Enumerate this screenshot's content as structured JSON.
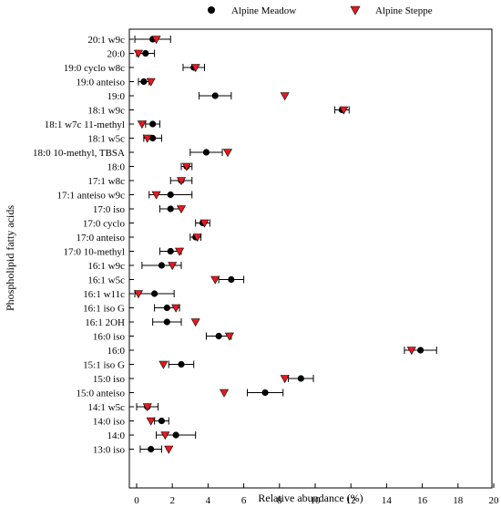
{
  "chart_data": {
    "type": "scatter",
    "orientation": "horizontal",
    "title": "",
    "xlabel": "Relative abundance (%)",
    "ylabel": "Phospholipid fatty acids",
    "xlim": [
      0,
      20
    ],
    "xticks": [
      "0",
      "2",
      "4",
      "6",
      "8",
      "10",
      "12",
      "14",
      "16",
      "18",
      "20"
    ],
    "grid": false,
    "legend_position": "top",
    "categories": [
      "20:1 w9c",
      "20:0",
      "19:0 cyclo w8c",
      "19:0 anteiso",
      "19:0",
      "18:1 w9c",
      "18:1 w7c 11-methyl",
      "18:1 w5c",
      "18:0 10-methyl, TBSA",
      "18:0",
      "17:1 w8c",
      "17:1 anteiso w9c",
      "17:0 iso",
      "17:0 cyclo",
      "17:0 anteiso",
      "17:0 10-methyl",
      "16:1 w9c",
      "16:1 w5c",
      "16:1 w11c",
      "16:1 iso G",
      "16:1 2OH",
      "16:0 iso",
      "16:0",
      "15:1 iso G",
      "15:0 iso",
      "15:0 anteiso",
      "14:1 w5c",
      "14:0 iso",
      "14:0",
      "13:0 iso"
    ],
    "series": [
      {
        "name": "Alpine Meadow",
        "marker": "circle",
        "color": "#000000",
        "values": [
          0.9,
          0.5,
          3.2,
          0.4,
          4.4,
          11.5,
          0.9,
          0.9,
          3.9,
          2.8,
          2.5,
          1.9,
          1.9,
          3.7,
          3.3,
          1.9,
          1.4,
          5.3,
          1.0,
          1.7,
          1.7,
          4.6,
          15.9,
          2.5,
          9.2,
          7.2,
          0.6,
          1.4,
          2.2,
          0.8
        ],
        "errors": [
          1.0,
          0.5,
          0.6,
          0.3,
          0.9,
          0.4,
          0.4,
          0.5,
          0.9,
          0.3,
          0.6,
          1.2,
          0.6,
          0.4,
          0.3,
          0.6,
          1.1,
          0.7,
          1.1,
          0.7,
          0.8,
          0.7,
          0.9,
          0.7,
          0.7,
          1.0,
          0.6,
          0.4,
          1.1,
          0.6
        ]
      },
      {
        "name": "Alpine Steppe",
        "marker": "triangle-down",
        "color": "#e8191e",
        "values": [
          1.1,
          0.1,
          3.3,
          0.8,
          8.3,
          11.6,
          0.3,
          0.6,
          5.1,
          2.8,
          2.5,
          1.1,
          2.5,
          3.8,
          3.4,
          2.4,
          2.0,
          4.4,
          0.1,
          2.2,
          3.3,
          5.2,
          15.4,
          1.5,
          8.3,
          4.9,
          0.6,
          0.8,
          1.6,
          1.8
        ]
      }
    ]
  }
}
